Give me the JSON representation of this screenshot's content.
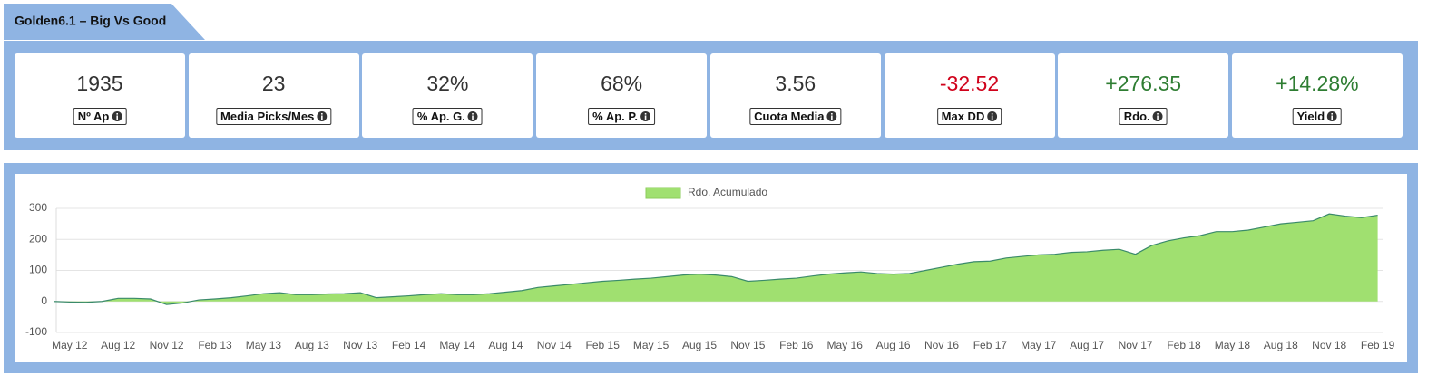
{
  "header": {
    "title": "Golden6.1 – Big Vs Good"
  },
  "stats": [
    {
      "value": "1935",
      "label": "Nº Ap",
      "color": "#333333"
    },
    {
      "value": "23",
      "label": "Media Picks/Mes",
      "color": "#333333"
    },
    {
      "value": "32%",
      "label": "% Ap. G.",
      "color": "#333333"
    },
    {
      "value": "68%",
      "label": "% Ap. P.",
      "color": "#333333"
    },
    {
      "value": "3.56",
      "label": "Cuota Media",
      "color": "#333333"
    },
    {
      "value": "-32.52",
      "label": "Max DD",
      "color": "#d0021b"
    },
    {
      "value": "+276.35",
      "label": "Rdo.",
      "color": "#2e7d32"
    },
    {
      "value": "+14.28%",
      "label": "Yield",
      "color": "#2e7d32"
    }
  ],
  "chart_data": {
    "type": "area",
    "categories": [
      null,
      "May 12",
      null,
      null,
      "Aug 12",
      null,
      null,
      "Nov 12",
      null,
      null,
      "Feb 13",
      null,
      null,
      "May 13",
      null,
      null,
      "Aug 13",
      null,
      null,
      "Nov 13",
      null,
      null,
      "Feb 14",
      null,
      null,
      "May 14",
      null,
      null,
      "Aug 14",
      null,
      null,
      "Nov 14",
      null,
      null,
      "Feb 15",
      null,
      null,
      "May 15",
      null,
      null,
      "Aug 15",
      null,
      null,
      "Nov 15",
      null,
      null,
      "Feb 16",
      null,
      null,
      "May 16",
      null,
      null,
      "Aug 16",
      null,
      null,
      "Nov 16",
      null,
      null,
      "Feb 17",
      null,
      null,
      "May 17",
      null,
      null,
      "Aug 17",
      null,
      null,
      "Nov 17",
      null,
      null,
      "Feb 18",
      null,
      null,
      "May 18",
      null,
      null,
      "Aug 18",
      null,
      null,
      "Nov 18",
      null,
      null,
      "Feb 19"
    ],
    "series": [
      {
        "name": "Rdo. Acumulado",
        "color": "#a0e070",
        "line_color": "#3a8a6a",
        "values": [
          0,
          -2,
          -3,
          0,
          10,
          10,
          8,
          -10,
          -5,
          5,
          8,
          12,
          18,
          25,
          28,
          22,
          22,
          24,
          25,
          28,
          12,
          15,
          18,
          22,
          25,
          22,
          22,
          25,
          30,
          35,
          45,
          50,
          55,
          60,
          65,
          68,
          72,
          75,
          80,
          85,
          88,
          85,
          80,
          65,
          68,
          72,
          75,
          82,
          88,
          92,
          95,
          90,
          88,
          90,
          100,
          110,
          120,
          128,
          130,
          140,
          145,
          150,
          152,
          158,
          160,
          165,
          168,
          152,
          180,
          195,
          205,
          212,
          225,
          225,
          230,
          240,
          250,
          255,
          260,
          282,
          275,
          270,
          278
        ]
      }
    ],
    "ylim": [
      -100,
      300
    ],
    "yticks": [
      -100,
      0,
      100,
      200,
      300
    ],
    "grid": true,
    "legend": "top"
  }
}
